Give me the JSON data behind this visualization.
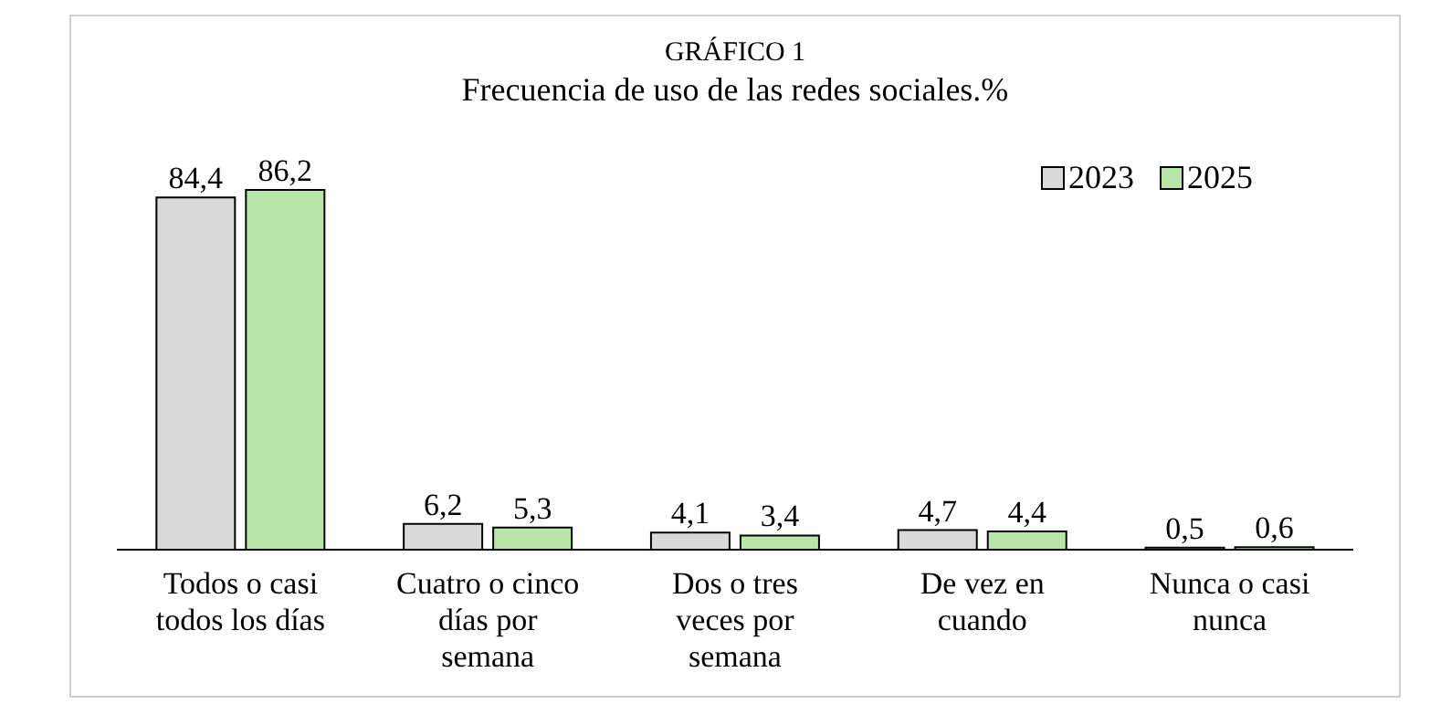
{
  "chart_data": {
    "type": "bar",
    "title": "GRÁFICO 1",
    "subtitle": "Frecuencia de uso de las redes sociales.%",
    "categories": [
      "Todos o casi todos los días",
      "Cuatro o cinco días por semana",
      "Dos o tres veces por semana",
      "De vez en cuando",
      "Nunca o casi nunca"
    ],
    "series": [
      {
        "name": "2023",
        "color": "#d9d9d9",
        "values": [
          84.4,
          6.2,
          4.1,
          4.7,
          0.5
        ],
        "value_labels": [
          "84,4",
          "6,2",
          "4,1",
          "4,7",
          "0,5"
        ]
      },
      {
        "name": "2025",
        "color": "#b8e6a8",
        "values": [
          86.2,
          5.3,
          3.4,
          4.4,
          0.6
        ],
        "value_labels": [
          "86,2",
          "5,3",
          "3,4",
          "4,4",
          "0,6"
        ]
      }
    ],
    "legend": "top right",
    "grid": false
  }
}
